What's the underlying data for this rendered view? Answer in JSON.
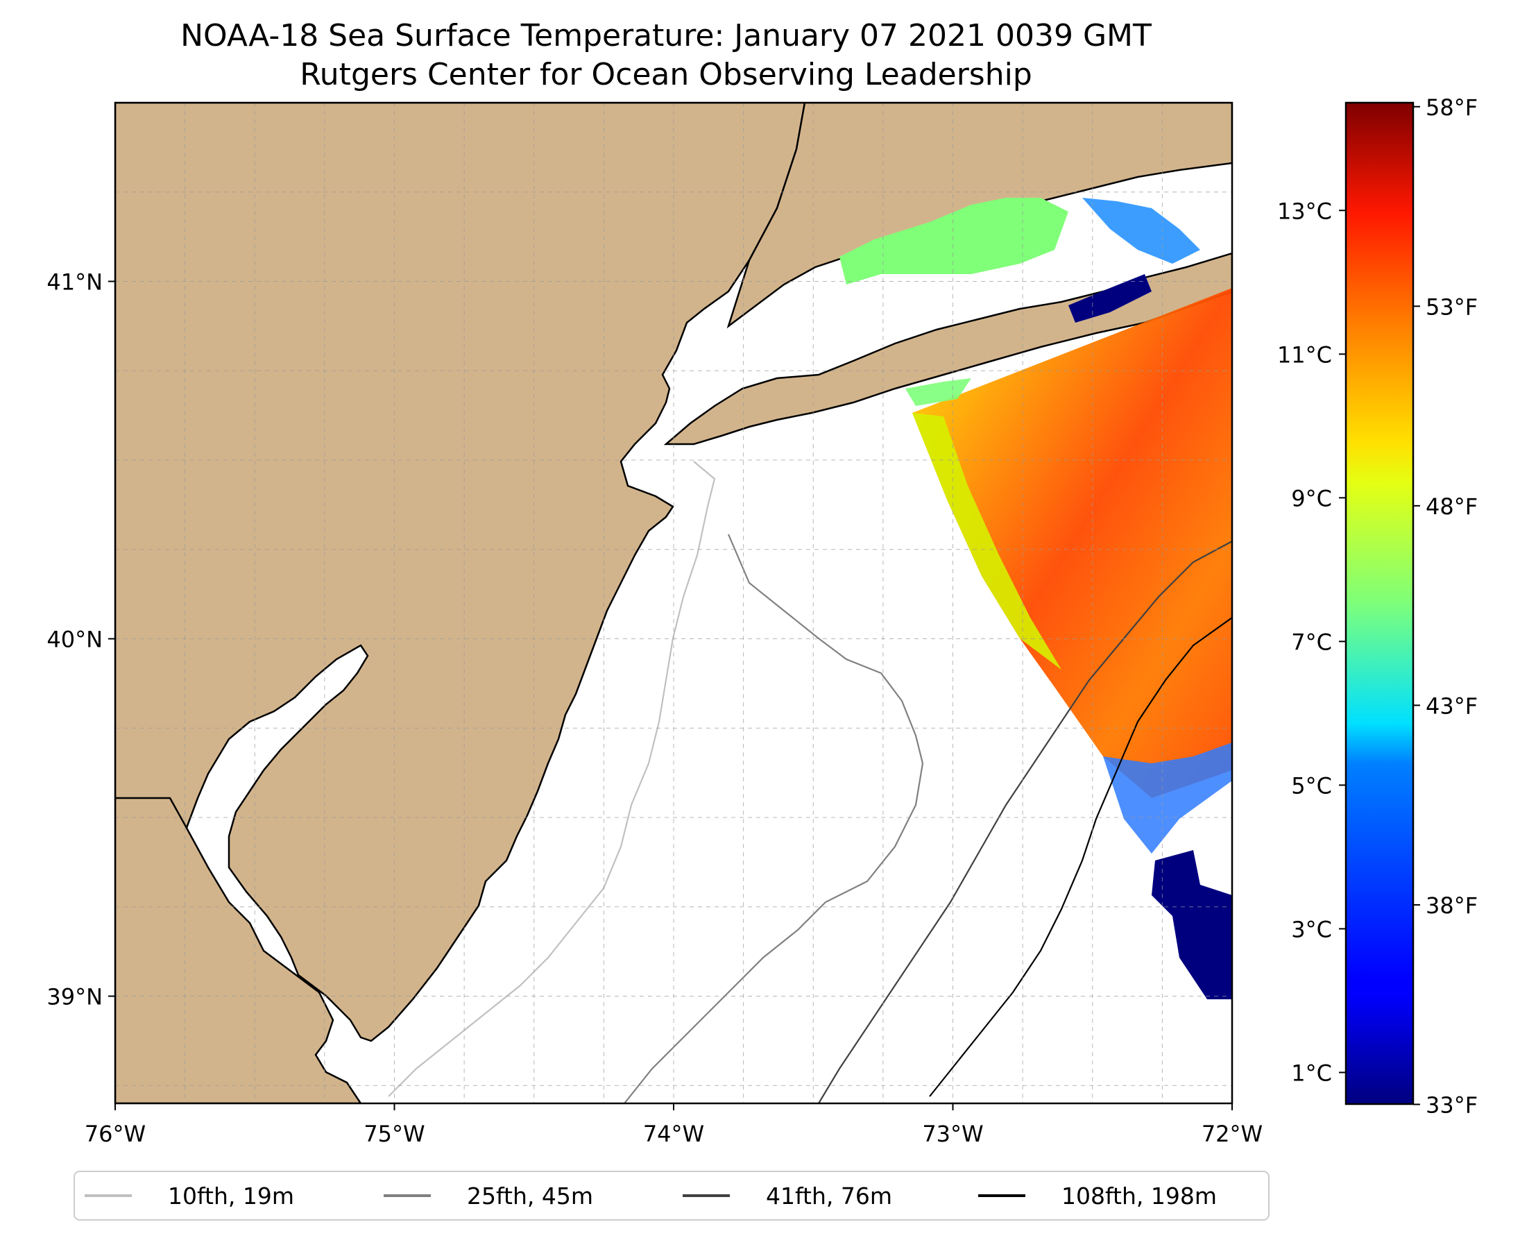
{
  "title": {
    "line1": "NOAA-18 Sea Surface Temperature: January 07 2021 0039 GMT",
    "line2": "Rutgers Center for Ocean Observing Leadership"
  },
  "map": {
    "extent": {
      "lon": [
        -76,
        -72
      ],
      "lat": [
        38.7,
        41.5
      ]
    },
    "lon_ticks": [
      {
        "lon": -76,
        "label": "76°W"
      },
      {
        "lon": -75,
        "label": "75°W"
      },
      {
        "lon": -74,
        "label": "74°W"
      },
      {
        "lon": -73,
        "label": "73°W"
      },
      {
        "lon": -72,
        "label": "72°W"
      }
    ],
    "lat_ticks": [
      {
        "lat": 41,
        "label": "41°N"
      },
      {
        "lat": 40,
        "label": "40°N"
      },
      {
        "lat": 39,
        "label": "39°N"
      }
    ],
    "land_color": "#d2b48c",
    "grid": "dashed"
  },
  "colorbar": {
    "colormap": "jet",
    "range_c": [
      0.56,
      14.5
    ],
    "celsius_ticks": [
      {
        "value": 1,
        "label": "1°C"
      },
      {
        "value": 3,
        "label": "3°C"
      },
      {
        "value": 5,
        "label": "5°C"
      },
      {
        "value": 7,
        "label": "7°C"
      },
      {
        "value": 9,
        "label": "9°C"
      },
      {
        "value": 11,
        "label": "11°C"
      },
      {
        "value": 13,
        "label": "13°C"
      }
    ],
    "fahrenheit_ticks": [
      {
        "value": 33,
        "label": "33°F"
      },
      {
        "value": 38,
        "label": "38°F"
      },
      {
        "value": 43,
        "label": "43°F"
      },
      {
        "value": 48,
        "label": "48°F"
      },
      {
        "value": 53,
        "label": "53°F"
      },
      {
        "value": 58,
        "label": "58°F"
      }
    ]
  },
  "legend": {
    "items": [
      {
        "label": "10fth, 19m",
        "color": "#c0c0c0"
      },
      {
        "label": "25fth, 45m",
        "color": "#808080"
      },
      {
        "label": "41fth, 76m",
        "color": "#404040"
      },
      {
        "label": "108fth, 198m",
        "color": "#000000"
      }
    ]
  }
}
